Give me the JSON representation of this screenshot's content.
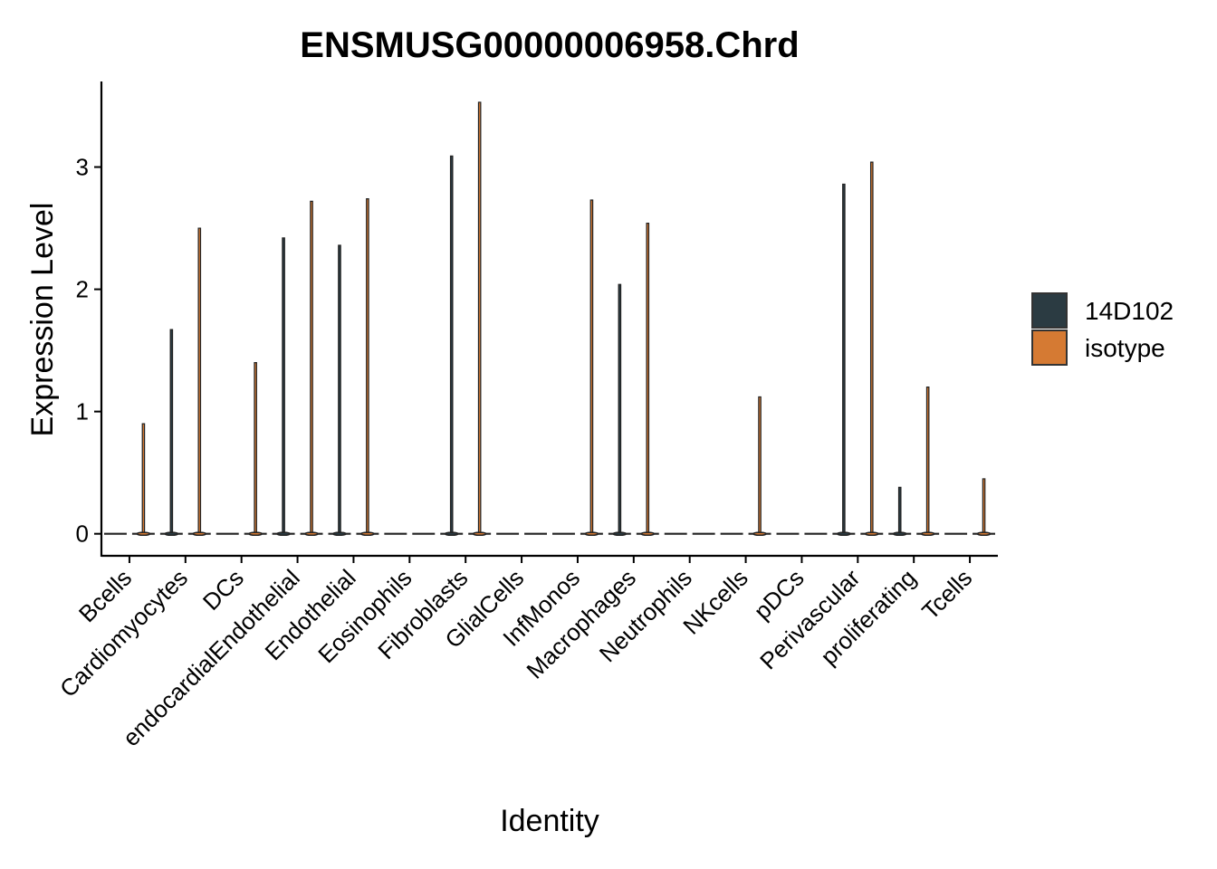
{
  "chart_data": {
    "type": "violin",
    "title": "ENSMUSG00000006958.Chrd",
    "xlabel": "Identity",
    "ylabel": "Expression Level",
    "ylim": [
      -0.18,
      3.7
    ],
    "yticks": [
      0,
      1,
      2,
      3
    ],
    "categories": [
      "Bcells",
      "Cardiomyocytes",
      "DCs",
      "endocardialEndothelial",
      "Endothelial",
      "Eosinophils",
      "Fibroblasts",
      "GlialCells",
      "InfMonos",
      "Macrophages",
      "Neutrophils",
      "NKcells",
      "pDCs",
      "Perivascular",
      "proliferating",
      "Tcells"
    ],
    "series": [
      {
        "name": "14D102",
        "color": "#2b3b42",
        "max": [
          0,
          1.67,
          0,
          2.42,
          2.36,
          0,
          3.09,
          0,
          0,
          2.04,
          0,
          0,
          0,
          2.86,
          0.38,
          0
        ]
      },
      {
        "name": "isotype",
        "color": "#d57a33",
        "max": [
          0.9,
          2.5,
          1.4,
          2.72,
          2.74,
          0,
          3.53,
          0,
          2.73,
          2.54,
          0,
          1.12,
          0,
          3.04,
          1.2,
          0.45
        ]
      }
    ],
    "legend_position": "right",
    "grid": false
  }
}
